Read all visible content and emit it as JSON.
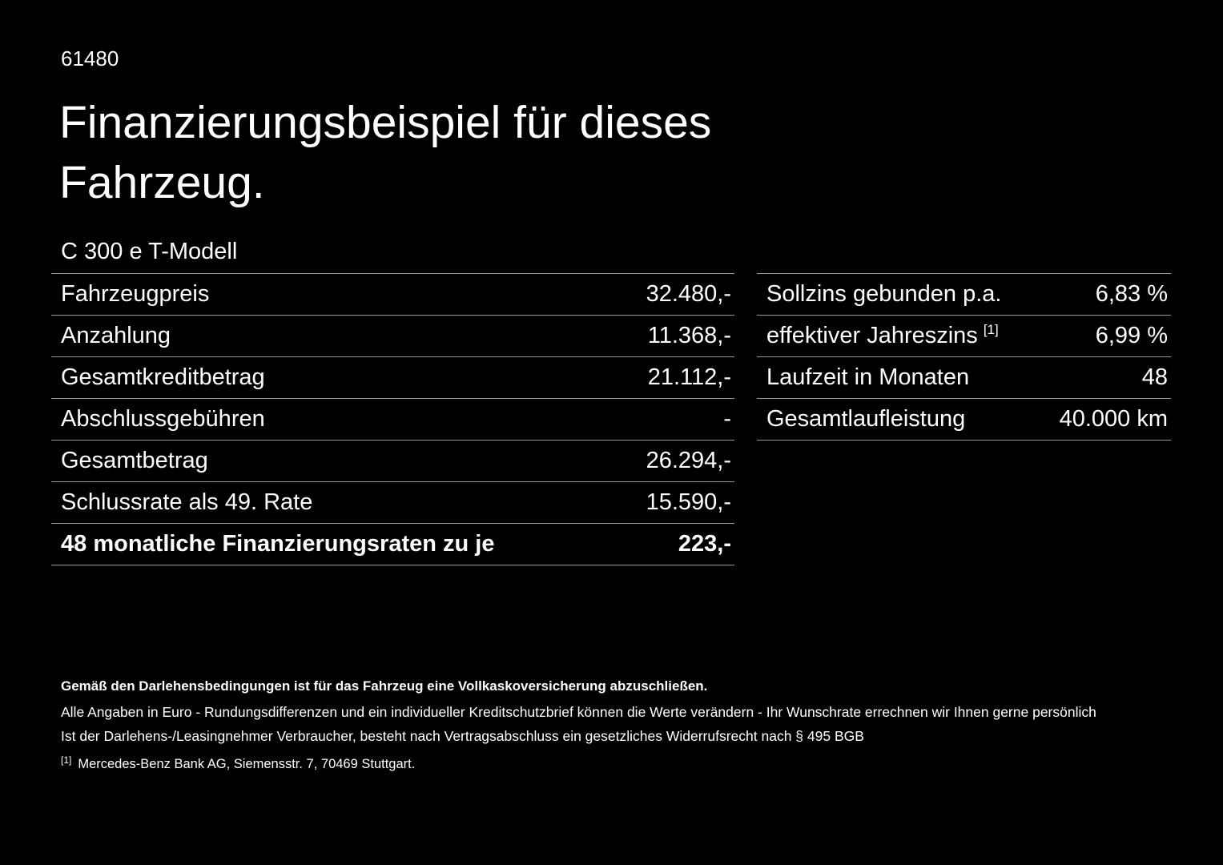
{
  "colors": {
    "background": "#000000",
    "text": "#ffffff",
    "divider": "#999999"
  },
  "header": {
    "doc_id": "61480",
    "title_line1": "Finanzierungsbeispiel für dieses",
    "title_line2": "Fahrzeug.",
    "model": "C 300 e T-Modell"
  },
  "left_table": {
    "rows": [
      {
        "label": "Fahrzeugpreis",
        "value": "32.480,-"
      },
      {
        "label": "Anzahlung",
        "value": "11.368,-"
      },
      {
        "label": "Gesamtkreditbetrag",
        "value": "21.112,-"
      },
      {
        "label": "Abschlussgebühren",
        "value": "-"
      },
      {
        "label": "Gesamtbetrag",
        "value": "26.294,-"
      },
      {
        "label": "Schlussrate als 49. Rate",
        "value": "15.590,-"
      },
      {
        "label": "48 monatliche Finanzierungsraten zu je",
        "value": "223,-"
      }
    ]
  },
  "right_table": {
    "rows": [
      {
        "label": "Sollzins gebunden p.a.",
        "footnote": "",
        "value": "6,83 %"
      },
      {
        "label": "effektiver Jahreszins",
        "footnote": "[1]",
        "value": "6,99 %"
      },
      {
        "label": "Laufzeit in Monaten",
        "footnote": "",
        "value": "48"
      },
      {
        "label": "Gesamtlaufleistung",
        "footnote": "",
        "value": "40.000 km"
      }
    ]
  },
  "footer": {
    "bold_line": "Gemäß den Darlehensbedingungen ist für das Fahrzeug eine Vollkaskoversicherung abzuschließen.",
    "line2": "Alle Angaben in Euro - Rundungsdifferenzen und ein individueller Kreditschutzbrief können die Werte verändern - Ihr Wunschrate errechnen wir Ihnen gerne persönlich",
    "line3": "Ist der Darlehens-/Leasingnehmer Verbraucher, besteht nach Vertragsabschluss ein gesetzliches Widerrufsrecht nach § 495 BGB",
    "footnote_marker": "[1]",
    "footnote_text": "Mercedes-Benz Bank AG, Siemensstr. 7, 70469 Stuttgart."
  }
}
